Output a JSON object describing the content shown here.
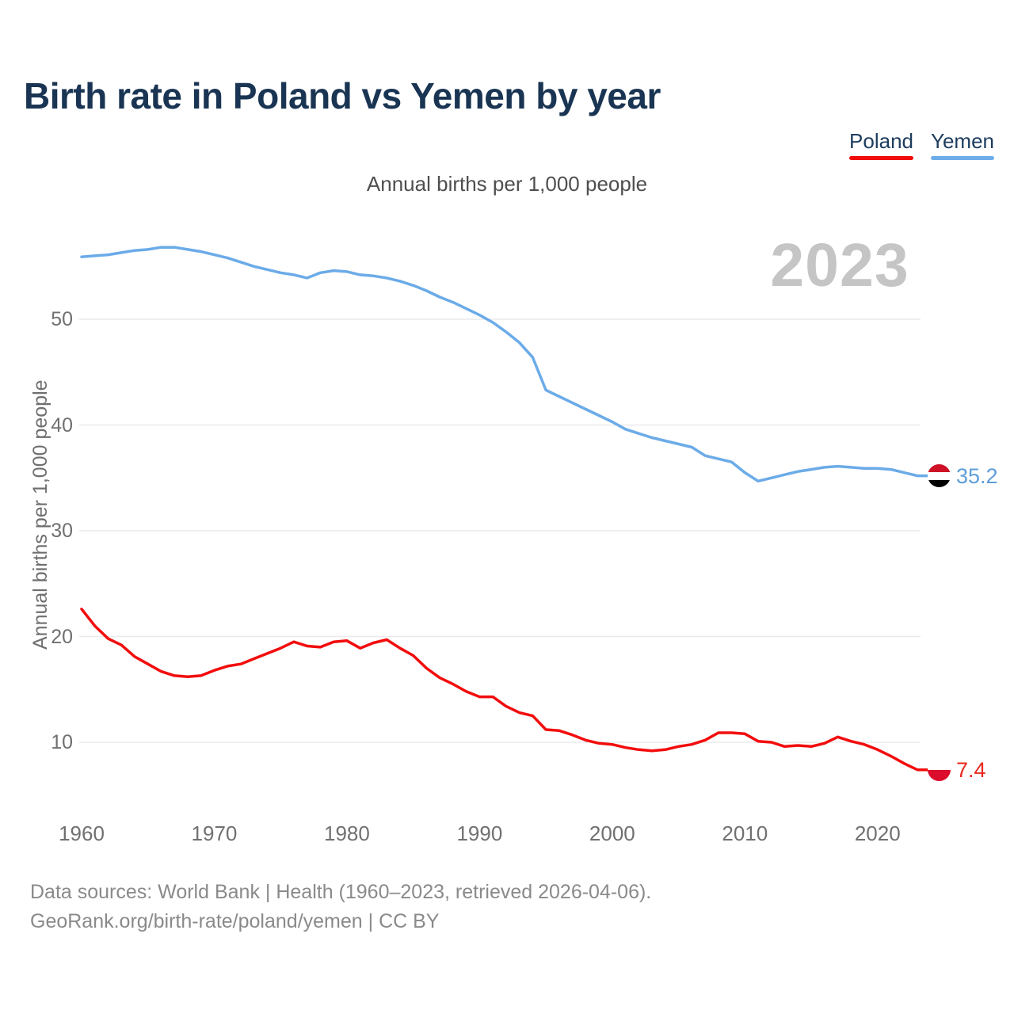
{
  "page": {
    "background": "#ffffff"
  },
  "header": {
    "title": "Birth rate in Poland vs Yemen by year",
    "subtitle": "Annual births per 1,000 people"
  },
  "legend": [
    {
      "label": "Poland",
      "color": "#f20d0d"
    },
    {
      "label": "Yemen",
      "color": "#6fadea"
    }
  ],
  "watermark": {
    "text": "2023",
    "color": "#c5c5c5"
  },
  "y_axis": {
    "title": "Annual births per 1,000 people",
    "ticks": [
      "50",
      "40",
      "30",
      "20",
      "10"
    ],
    "tick_values": [
      50,
      40,
      30,
      20,
      10
    ]
  },
  "x_axis": {
    "ticks": [
      "1960",
      "1970",
      "1980",
      "1990",
      "2000",
      "2010",
      "2020"
    ],
    "tick_values": [
      1960,
      1970,
      1980,
      1990,
      2000,
      2010,
      2020
    ]
  },
  "end_labels": [
    {
      "series": "Yemen",
      "value": "35.2",
      "color": "#5e9ed9"
    },
    {
      "series": "Poland",
      "value": "7.4",
      "color": "#e8281e"
    }
  ],
  "flags": {
    "yemen": [
      "#ce1126",
      "#ffffff",
      "#000000"
    ],
    "poland": [
      "#ffffff",
      "#dc0c2c"
    ]
  },
  "footer": {
    "line1": "Data sources: World Bank | Health (1960–2023, retrieved 2026-04-06).",
    "line2": "GeoRank.org/birth-rate/poland/yemen | CC BY"
  },
  "chart_data": {
    "type": "line",
    "title": "Birth rate in Poland vs Yemen by year",
    "subtitle": "Annual births per 1,000 people",
    "ylabel": "Annual births per 1,000 people",
    "xlim": [
      1960,
      2023
    ],
    "ylim": [
      5,
      58
    ],
    "grid": "horizontal-only",
    "legend_position": "top-right",
    "watermark": "2023",
    "x": [
      1960,
      1961,
      1962,
      1963,
      1964,
      1965,
      1966,
      1967,
      1968,
      1969,
      1970,
      1971,
      1972,
      1973,
      1974,
      1975,
      1976,
      1977,
      1978,
      1979,
      1980,
      1981,
      1982,
      1983,
      1984,
      1985,
      1986,
      1987,
      1988,
      1989,
      1990,
      1991,
      1992,
      1993,
      1994,
      1995,
      1996,
      1997,
      1998,
      1999,
      2000,
      2001,
      2002,
      2003,
      2004,
      2005,
      2006,
      2007,
      2008,
      2009,
      2010,
      2011,
      2012,
      2013,
      2014,
      2015,
      2016,
      2017,
      2018,
      2019,
      2020,
      2021,
      2022,
      2023
    ],
    "series": [
      {
        "name": "Poland",
        "color": "#f20d0d",
        "end_label": "7.4",
        "values": [
          22.6,
          21.0,
          19.8,
          19.2,
          18.1,
          17.4,
          16.7,
          16.3,
          16.2,
          16.3,
          16.8,
          17.2,
          17.4,
          17.9,
          18.4,
          18.9,
          19.5,
          19.1,
          19.0,
          19.5,
          19.6,
          18.9,
          19.4,
          19.7,
          18.9,
          18.2,
          17.0,
          16.1,
          15.5,
          14.8,
          14.3,
          14.3,
          13.4,
          12.8,
          12.5,
          11.2,
          11.1,
          10.7,
          10.2,
          9.9,
          9.8,
          9.5,
          9.3,
          9.2,
          9.3,
          9.6,
          9.8,
          10.2,
          10.9,
          10.9,
          10.8,
          10.1,
          10.0,
          9.6,
          9.7,
          9.6,
          9.9,
          10.5,
          10.1,
          9.8,
          9.3,
          8.7,
          8.0,
          7.4
        ]
      },
      {
        "name": "Yemen",
        "color": "#6babe8",
        "end_label": "35.2",
        "values": [
          55.9,
          56.0,
          56.1,
          56.3,
          56.5,
          56.6,
          56.8,
          56.8,
          56.6,
          56.4,
          56.1,
          55.8,
          55.4,
          55.0,
          54.7,
          54.4,
          54.2,
          53.9,
          54.4,
          54.6,
          54.5,
          54.2,
          54.1,
          53.9,
          53.6,
          53.2,
          52.7,
          52.1,
          51.6,
          51.0,
          50.4,
          49.7,
          48.8,
          47.8,
          46.4,
          43.3,
          42.7,
          42.1,
          41.5,
          40.9,
          40.3,
          39.6,
          39.2,
          38.8,
          38.5,
          38.2,
          37.9,
          37.1,
          36.8,
          36.5,
          35.5,
          34.7,
          35.0,
          35.3,
          35.6,
          35.8,
          36.0,
          36.1,
          36.0,
          35.9,
          35.9,
          35.8,
          35.5,
          35.2
        ]
      }
    ]
  }
}
